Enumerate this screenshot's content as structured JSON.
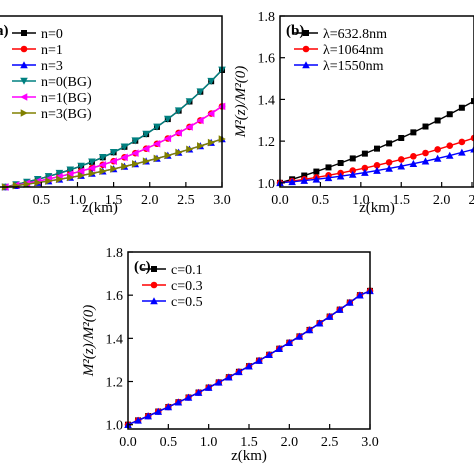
{
  "chart_data": [
    {
      "panel_label": "a)",
      "type": "line",
      "xlabel": "z(km)",
      "ylabel": "",
      "xlim": [
        -0.1,
        3.0
      ],
      "ylim": [
        1.0,
        2.4
      ],
      "xticks": [
        "0.5",
        "1.0",
        "1.5",
        "2.0",
        "2.5",
        "3.0"
      ],
      "yticks": [],
      "legend_position": "top-left",
      "x": [
        0.0,
        0.15,
        0.3,
        0.45,
        0.6,
        0.75,
        0.9,
        1.05,
        1.2,
        1.35,
        1.5,
        1.65,
        1.8,
        1.95,
        2.1,
        2.25,
        2.4,
        2.55,
        2.7,
        2.85,
        3.0
      ],
      "series": [
        {
          "name": "n=0",
          "marker": "square",
          "color": "#000000",
          "values": [
            1.0,
            1.02,
            1.041,
            1.063,
            1.087,
            1.113,
            1.141,
            1.172,
            1.206,
            1.243,
            1.284,
            1.329,
            1.379,
            1.433,
            1.492,
            1.556,
            1.625,
            1.7,
            1.78,
            1.866,
            1.958
          ]
        },
        {
          "name": "n=1",
          "marker": "circle",
          "color": "#ff0000",
          "values": [
            1.0,
            1.015,
            1.031,
            1.048,
            1.066,
            1.086,
            1.107,
            1.13,
            1.155,
            1.182,
            1.211,
            1.243,
            1.277,
            1.314,
            1.354,
            1.397,
            1.443,
            1.492,
            1.545,
            1.601,
            1.66
          ]
        },
        {
          "name": "n=3",
          "marker": "triangle-up",
          "color": "#0000ff",
          "values": [
            1.0,
            1.011,
            1.023,
            1.036,
            1.049,
            1.063,
            1.078,
            1.094,
            1.111,
            1.129,
            1.148,
            1.168,
            1.189,
            1.211,
            1.234,
            1.258,
            1.283,
            1.309,
            1.336,
            1.364,
            1.393
          ]
        },
        {
          "name": "n=0(BG)",
          "marker": "triangle-down",
          "color": "#008080",
          "values": [
            1.0,
            1.02,
            1.041,
            1.063,
            1.087,
            1.113,
            1.141,
            1.172,
            1.206,
            1.243,
            1.284,
            1.329,
            1.379,
            1.433,
            1.492,
            1.556,
            1.625,
            1.7,
            1.78,
            1.866,
            1.958
          ]
        },
        {
          "name": "n=1(BG)",
          "marker": "triangle-left",
          "color": "#ff00ff",
          "values": [
            1.0,
            1.015,
            1.031,
            1.048,
            1.066,
            1.086,
            1.107,
            1.13,
            1.155,
            1.182,
            1.211,
            1.243,
            1.277,
            1.314,
            1.354,
            1.397,
            1.443,
            1.492,
            1.545,
            1.601,
            1.66
          ]
        },
        {
          "name": "n=3(BG)",
          "marker": "triangle-right",
          "color": "#808000",
          "values": [
            1.0,
            1.011,
            1.023,
            1.036,
            1.049,
            1.063,
            1.078,
            1.094,
            1.111,
            1.129,
            1.148,
            1.168,
            1.189,
            1.211,
            1.234,
            1.258,
            1.283,
            1.309,
            1.336,
            1.364,
            1.393
          ]
        }
      ]
    },
    {
      "panel_label": "(b)",
      "type": "line",
      "xlabel": "z(km)",
      "ylabel": "M²(z)/M²(0)",
      "xlim": [
        0.0,
        2.4
      ],
      "ylim": [
        0.98,
        1.8
      ],
      "xticks": [
        "0.0",
        "0.5",
        "1.0",
        "1.5",
        "2.0",
        "2"
      ],
      "yticks": [
        "1.0",
        "1.2",
        "1.4",
        "1.6",
        "1.8"
      ],
      "legend_position": "top-left",
      "x": [
        0.0,
        0.15,
        0.3,
        0.45,
        0.6,
        0.75,
        0.9,
        1.05,
        1.2,
        1.35,
        1.5,
        1.65,
        1.8,
        1.95,
        2.1,
        2.25,
        2.4
      ],
      "series": [
        {
          "name": "λ=632.8nm",
          "marker": "square",
          "color": "#000000",
          "values": [
            1.0,
            1.017,
            1.035,
            1.054,
            1.074,
            1.095,
            1.117,
            1.14,
            1.164,
            1.189,
            1.215,
            1.242,
            1.27,
            1.299,
            1.329,
            1.36,
            1.392
          ]
        },
        {
          "name": "λ=1064nm",
          "marker": "circle",
          "color": "#ff0000",
          "values": [
            1.0,
            1.008,
            1.017,
            1.026,
            1.036,
            1.047,
            1.059,
            1.071,
            1.084,
            1.098,
            1.112,
            1.127,
            1.143,
            1.16,
            1.178,
            1.196,
            1.215
          ]
        },
        {
          "name": "λ=1550nm",
          "marker": "triangle-up",
          "color": "#0000ff",
          "values": [
            1.0,
            1.005,
            1.011,
            1.017,
            1.024,
            1.032,
            1.04,
            1.049,
            1.059,
            1.069,
            1.08,
            1.092,
            1.104,
            1.117,
            1.131,
            1.146,
            1.161
          ]
        }
      ]
    },
    {
      "panel_label": "(c)",
      "type": "line",
      "xlabel": "z(km)",
      "ylabel": "M²(z)/M²(0)",
      "xlim": [
        0.0,
        3.0
      ],
      "ylim": [
        0.98,
        1.8
      ],
      "xticks": [
        "0.0",
        "0.5",
        "1.0",
        "1.5",
        "2.0",
        "2.5",
        "3.0"
      ],
      "yticks": [
        "1.0",
        "1.2",
        "1.4",
        "1.6",
        "1.8"
      ],
      "legend_position": "top-left",
      "x": [
        0.0,
        0.125,
        0.25,
        0.375,
        0.5,
        0.625,
        0.75,
        0.875,
        1.0,
        1.125,
        1.25,
        1.375,
        1.5,
        1.625,
        1.75,
        1.875,
        2.0,
        2.125,
        2.25,
        2.375,
        2.5,
        2.625,
        2.75,
        2.875,
        3.0
      ],
      "series": [
        {
          "name": "c=0.1",
          "marker": "square",
          "color": "#000000",
          "values": [
            1.0,
            1.02,
            1.04,
            1.061,
            1.082,
            1.104,
            1.126,
            1.149,
            1.172,
            1.196,
            1.22,
            1.245,
            1.271,
            1.297,
            1.324,
            1.352,
            1.38,
            1.409,
            1.439,
            1.47,
            1.501,
            1.533,
            1.566,
            1.6,
            1.62
          ]
        },
        {
          "name": "c=0.3",
          "marker": "circle",
          "color": "#ff0000",
          "values": [
            1.0,
            1.02,
            1.04,
            1.061,
            1.082,
            1.104,
            1.126,
            1.149,
            1.172,
            1.196,
            1.22,
            1.245,
            1.271,
            1.297,
            1.324,
            1.352,
            1.38,
            1.409,
            1.439,
            1.47,
            1.501,
            1.533,
            1.566,
            1.6,
            1.62
          ]
        },
        {
          "name": "c=0.5",
          "marker": "triangle-up",
          "color": "#0000ff",
          "values": [
            1.0,
            1.02,
            1.04,
            1.061,
            1.082,
            1.104,
            1.126,
            1.149,
            1.172,
            1.196,
            1.22,
            1.245,
            1.271,
            1.297,
            1.324,
            1.352,
            1.38,
            1.409,
            1.439,
            1.47,
            1.501,
            1.533,
            1.566,
            1.6,
            1.62
          ]
        }
      ]
    }
  ]
}
